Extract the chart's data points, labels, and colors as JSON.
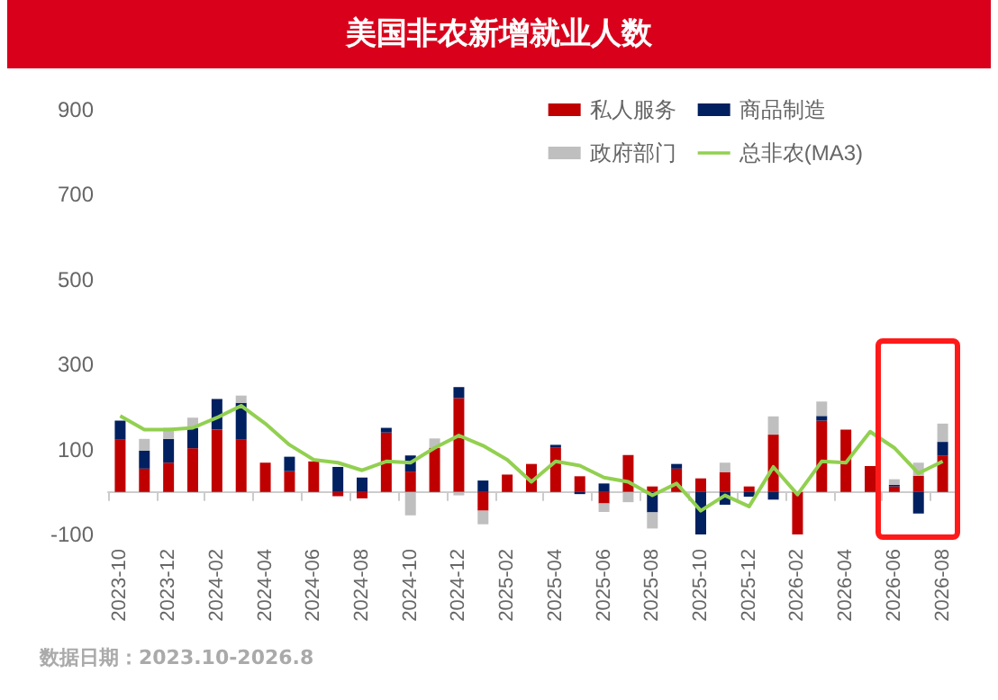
{
  "chart_data": {
    "type": "bar",
    "title": "美国非农新增就业人数",
    "stacked": true,
    "categories": [
      "2023-10",
      null,
      "2023-12",
      null,
      "2024-02",
      null,
      "2024-04",
      null,
      "2024-06",
      null,
      "2024-08",
      null,
      "2024-10",
      null,
      "2024-12",
      null,
      "2025-02",
      null,
      "2025-04",
      null,
      "2025-06",
      null,
      "2025-08",
      null,
      "2025-10",
      null,
      "2025-12",
      null,
      "2026-02",
      null,
      "2026-04",
      null,
      "2026-06",
      null,
      "2026-08"
    ],
    "series": [
      {
        "name": "私人服务",
        "color": "#c00000",
        "values": [
          123,
          55,
          69,
          103,
          147,
          123,
          69,
          49,
          72,
          -10,
          -15,
          140,
          48,
          104,
          221,
          -44,
          41,
          66,
          104,
          37,
          -27,
          87,
          13,
          55,
          32,
          47,
          13,
          135,
          -100,
          168,
          147,
          61,
          13,
          38,
          86
        ]
      },
      {
        "name": "商品制造",
        "color": "#002060",
        "values": [
          45,
          42,
          56,
          48,
          72,
          87,
          null,
          34,
          null,
          59,
          34,
          11,
          38,
          null,
          26,
          27,
          null,
          null,
          7,
          -5,
          20,
          null,
          -48,
          11,
          -100,
          -30,
          -11,
          -18,
          null,
          11,
          null,
          null,
          4,
          -51,
          32
        ]
      },
      {
        "name": "政府部门",
        "color": "#bfbfbf",
        "values": [
          null,
          28,
          26,
          24,
          null,
          17,
          null,
          null,
          null,
          null,
          null,
          null,
          -55,
          22,
          -8,
          -32,
          null,
          null,
          null,
          null,
          -20,
          -24,
          -38,
          null,
          null,
          22,
          null,
          43,
          null,
          34,
          null,
          null,
          13,
          31,
          43
        ]
      },
      {
        "name": "总非农(MA3)",
        "type": "line",
        "marker": "none",
        "color": "#92d050",
        "values": [
          179,
          147,
          147,
          151,
          175,
          203,
          161,
          111,
          76,
          69,
          51,
          72,
          69,
          104,
          133,
          109,
          76,
          24,
          72,
          62,
          34,
          24,
          -8,
          20,
          -44,
          -8,
          -34,
          59,
          -6,
          72,
          69,
          142,
          104,
          44,
          72
        ]
      }
    ],
    "ylim": [
      -100,
      900
    ],
    "yticks": [
      -100,
      100,
      300,
      500,
      700,
      900
    ],
    "grid": false,
    "legend": "top right",
    "annotations": [
      "数据日期：2023.10-2026.8"
    ]
  }
}
